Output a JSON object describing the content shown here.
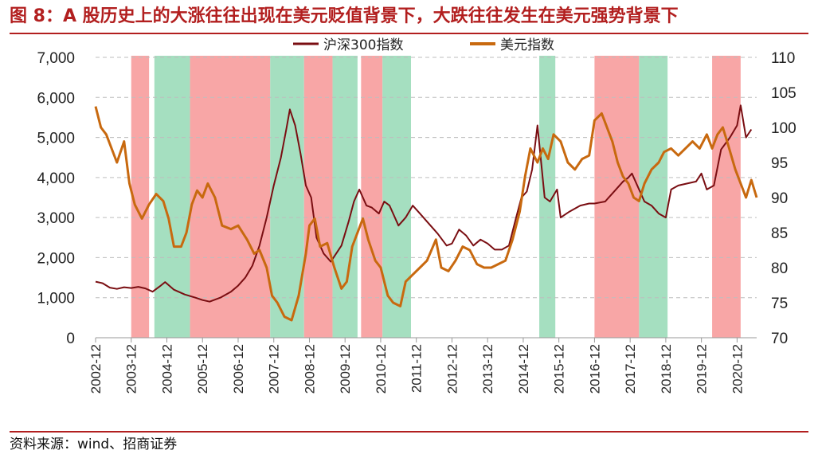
{
  "title": "图 8：A 股历史上的大涨往往出现在美元贬值背景下，大跌往往发生在美元强势背景下",
  "source": "资料来源：wind、招商证券",
  "colors": {
    "csi300": "#7a0e12",
    "usd": "#c8690f",
    "red_band": "#f8a6a6",
    "green_band": "#a5dfc0",
    "title": "#b21f1f"
  },
  "chart_data": {
    "type": "line",
    "x_labels": [
      "2002-12",
      "2003-12",
      "2004-12",
      "2005-12",
      "2006-12",
      "2007-12",
      "2008-12",
      "2009-12",
      "2010-12",
      "2011-12",
      "2012-12",
      "2013-12",
      "2014-12",
      "2015-12",
      "2016-12",
      "2017-12",
      "2018-12",
      "2019-12",
      "2020-12"
    ],
    "y_left": {
      "min": 0,
      "max": 7000,
      "ticks": [
        "0",
        "1,000",
        "2,000",
        "3,000",
        "4,000",
        "5,000",
        "6,000",
        "7,000"
      ]
    },
    "y_right": {
      "min": 70,
      "max": 110,
      "ticks": [
        "70",
        "75",
        "80",
        "85",
        "90",
        "95",
        "100",
        "105",
        "110"
      ]
    },
    "grid": "horizontal dashed",
    "legend_position": "top-center",
    "bands": [
      {
        "start": 2004.0,
        "end": 2004.5,
        "tone": "red"
      },
      {
        "start": 2004.65,
        "end": 2005.65,
        "tone": "green"
      },
      {
        "start": 2005.65,
        "end": 2007.9,
        "tone": "red"
      },
      {
        "start": 2007.9,
        "end": 2008.85,
        "tone": "green"
      },
      {
        "start": 2008.85,
        "end": 2009.65,
        "tone": "red"
      },
      {
        "start": 2009.65,
        "end": 2010.35,
        "tone": "green"
      },
      {
        "start": 2010.45,
        "end": 2011.05,
        "tone": "red"
      },
      {
        "start": 2011.05,
        "end": 2011.85,
        "tone": "green"
      },
      {
        "start": 2015.45,
        "end": 2015.9,
        "tone": "green"
      },
      {
        "start": 2017.0,
        "end": 2018.25,
        "tone": "red"
      },
      {
        "start": 2018.25,
        "end": 2019.05,
        "tone": "green"
      },
      {
        "start": 2020.3,
        "end": 2021.1,
        "tone": "red"
      }
    ],
    "series": [
      {
        "name": "沪深300指数",
        "axis": "left",
        "points": [
          [
            2003.0,
            1400
          ],
          [
            2003.2,
            1360
          ],
          [
            2003.4,
            1250
          ],
          [
            2003.6,
            1220
          ],
          [
            2003.8,
            1260
          ],
          [
            2004.0,
            1240
          ],
          [
            2004.2,
            1270
          ],
          [
            2004.4,
            1230
          ],
          [
            2004.6,
            1150
          ],
          [
            2004.8,
            1280
          ],
          [
            2004.95,
            1390
          ],
          [
            2005.2,
            1200
          ],
          [
            2005.5,
            1080
          ],
          [
            2005.8,
            1000
          ],
          [
            2006.0,
            940
          ],
          [
            2006.2,
            900
          ],
          [
            2006.5,
            1000
          ],
          [
            2006.8,
            1150
          ],
          [
            2007.0,
            1300
          ],
          [
            2007.2,
            1500
          ],
          [
            2007.4,
            1800
          ],
          [
            2007.6,
            2300
          ],
          [
            2007.8,
            3000
          ],
          [
            2008.0,
            3800
          ],
          [
            2008.2,
            4500
          ],
          [
            2008.35,
            5200
          ],
          [
            2008.45,
            5700
          ],
          [
            2008.6,
            5300
          ],
          [
            2008.75,
            4600
          ],
          [
            2008.9,
            3800
          ],
          [
            2009.05,
            3500
          ],
          [
            2009.2,
            2500
          ],
          [
            2009.4,
            2100
          ],
          [
            2009.6,
            1900
          ],
          [
            2009.75,
            2100
          ],
          [
            2009.9,
            2300
          ],
          [
            2010.1,
            2900
          ],
          [
            2010.25,
            3400
          ],
          [
            2010.4,
            3700
          ],
          [
            2010.6,
            3300
          ],
          [
            2010.75,
            3250
          ],
          [
            2010.95,
            3100
          ],
          [
            2011.1,
            3400
          ],
          [
            2011.25,
            3300
          ],
          [
            2011.5,
            2800
          ],
          [
            2011.7,
            3000
          ],
          [
            2011.9,
            3300
          ],
          [
            2012.1,
            3100
          ],
          [
            2012.3,
            2900
          ],
          [
            2012.6,
            2600
          ],
          [
            2012.85,
            2300
          ],
          [
            2013.0,
            2350
          ],
          [
            2013.2,
            2700
          ],
          [
            2013.4,
            2550
          ],
          [
            2013.6,
            2300
          ],
          [
            2013.8,
            2450
          ],
          [
            2014.0,
            2350
          ],
          [
            2014.2,
            2200
          ],
          [
            2014.4,
            2200
          ],
          [
            2014.6,
            2300
          ],
          [
            2014.8,
            3000
          ],
          [
            2014.95,
            3500
          ],
          [
            2015.1,
            3650
          ],
          [
            2015.25,
            4200
          ],
          [
            2015.4,
            5300
          ],
          [
            2015.5,
            4400
          ],
          [
            2015.6,
            3500
          ],
          [
            2015.75,
            3400
          ],
          [
            2015.95,
            3700
          ],
          [
            2016.05,
            3000
          ],
          [
            2016.3,
            3150
          ],
          [
            2016.6,
            3300
          ],
          [
            2016.85,
            3350
          ],
          [
            2017.0,
            3350
          ],
          [
            2017.3,
            3400
          ],
          [
            2017.6,
            3700
          ],
          [
            2017.8,
            3900
          ],
          [
            2017.95,
            4000
          ],
          [
            2018.05,
            4100
          ],
          [
            2018.2,
            3800
          ],
          [
            2018.4,
            3400
          ],
          [
            2018.6,
            3300
          ],
          [
            2018.8,
            3100
          ],
          [
            2019.0,
            3000
          ],
          [
            2019.15,
            3700
          ],
          [
            2019.35,
            3800
          ],
          [
            2019.6,
            3850
          ],
          [
            2019.85,
            3900
          ],
          [
            2020.0,
            4100
          ],
          [
            2020.15,
            3700
          ],
          [
            2020.35,
            3800
          ],
          [
            2020.55,
            4700
          ],
          [
            2020.8,
            5000
          ],
          [
            2021.0,
            5300
          ],
          [
            2021.1,
            5800
          ],
          [
            2021.25,
            5000
          ],
          [
            2021.4,
            5200
          ]
        ]
      },
      {
        "name": "美元指数",
        "axis": "right",
        "points": [
          [
            2003.0,
            103
          ],
          [
            2003.15,
            100
          ],
          [
            2003.3,
            99
          ],
          [
            2003.45,
            97
          ],
          [
            2003.6,
            95
          ],
          [
            2003.8,
            98
          ],
          [
            2003.95,
            92
          ],
          [
            2004.1,
            89
          ],
          [
            2004.3,
            87
          ],
          [
            2004.5,
            89
          ],
          [
            2004.7,
            90.5
          ],
          [
            2004.9,
            89.5
          ],
          [
            2005.05,
            87
          ],
          [
            2005.2,
            83
          ],
          [
            2005.4,
            83
          ],
          [
            2005.55,
            85
          ],
          [
            2005.7,
            89
          ],
          [
            2005.85,
            91
          ],
          [
            2006.0,
            90
          ],
          [
            2006.15,
            92
          ],
          [
            2006.35,
            90
          ],
          [
            2006.55,
            86
          ],
          [
            2006.8,
            85.5
          ],
          [
            2007.0,
            86
          ],
          [
            2007.25,
            84
          ],
          [
            2007.45,
            82
          ],
          [
            2007.6,
            82.5
          ],
          [
            2007.8,
            80
          ],
          [
            2007.95,
            76
          ],
          [
            2008.1,
            75
          ],
          [
            2008.3,
            73
          ],
          [
            2008.5,
            72.5
          ],
          [
            2008.7,
            76
          ],
          [
            2008.9,
            82
          ],
          [
            2009.0,
            86
          ],
          [
            2009.15,
            87
          ],
          [
            2009.3,
            83
          ],
          [
            2009.5,
            83.5
          ],
          [
            2009.7,
            80
          ],
          [
            2009.9,
            77
          ],
          [
            2010.05,
            78
          ],
          [
            2010.2,
            83
          ],
          [
            2010.35,
            85
          ],
          [
            2010.5,
            87
          ],
          [
            2010.65,
            84
          ],
          [
            2010.85,
            81
          ],
          [
            2011.0,
            80
          ],
          [
            2011.2,
            76
          ],
          [
            2011.35,
            75
          ],
          [
            2011.55,
            74.5
          ],
          [
            2011.7,
            78
          ],
          [
            2011.9,
            79
          ],
          [
            2012.1,
            80
          ],
          [
            2012.3,
            81
          ],
          [
            2012.55,
            84
          ],
          [
            2012.7,
            80
          ],
          [
            2012.9,
            79.5
          ],
          [
            2013.1,
            81
          ],
          [
            2013.3,
            83
          ],
          [
            2013.5,
            82.5
          ],
          [
            2013.7,
            80.5
          ],
          [
            2013.9,
            80
          ],
          [
            2014.1,
            80
          ],
          [
            2014.3,
            80.5
          ],
          [
            2014.5,
            81
          ],
          [
            2014.7,
            84
          ],
          [
            2014.9,
            88
          ],
          [
            2015.05,
            93
          ],
          [
            2015.2,
            97
          ],
          [
            2015.4,
            95
          ],
          [
            2015.55,
            97
          ],
          [
            2015.7,
            95.5
          ],
          [
            2015.85,
            99
          ],
          [
            2016.05,
            98
          ],
          [
            2016.25,
            95
          ],
          [
            2016.45,
            94
          ],
          [
            2016.65,
            95.5
          ],
          [
            2016.85,
            96
          ],
          [
            2017.0,
            101
          ],
          [
            2017.2,
            102
          ],
          [
            2017.35,
            100
          ],
          [
            2017.5,
            98
          ],
          [
            2017.65,
            95
          ],
          [
            2017.8,
            93
          ],
          [
            2017.95,
            92
          ],
          [
            2018.1,
            90
          ],
          [
            2018.25,
            89.5
          ],
          [
            2018.4,
            92
          ],
          [
            2018.6,
            94
          ],
          [
            2018.8,
            95
          ],
          [
            2018.95,
            96.5
          ],
          [
            2019.15,
            97
          ],
          [
            2019.35,
            96
          ],
          [
            2019.55,
            97
          ],
          [
            2019.75,
            98
          ],
          [
            2019.95,
            97
          ],
          [
            2020.15,
            99
          ],
          [
            2020.3,
            97
          ],
          [
            2020.45,
            99
          ],
          [
            2020.6,
            100
          ],
          [
            2020.75,
            97.5
          ],
          [
            2020.95,
            94
          ],
          [
            2021.1,
            92
          ],
          [
            2021.25,
            90
          ],
          [
            2021.4,
            92.5
          ],
          [
            2021.55,
            90
          ]
        ]
      }
    ]
  }
}
